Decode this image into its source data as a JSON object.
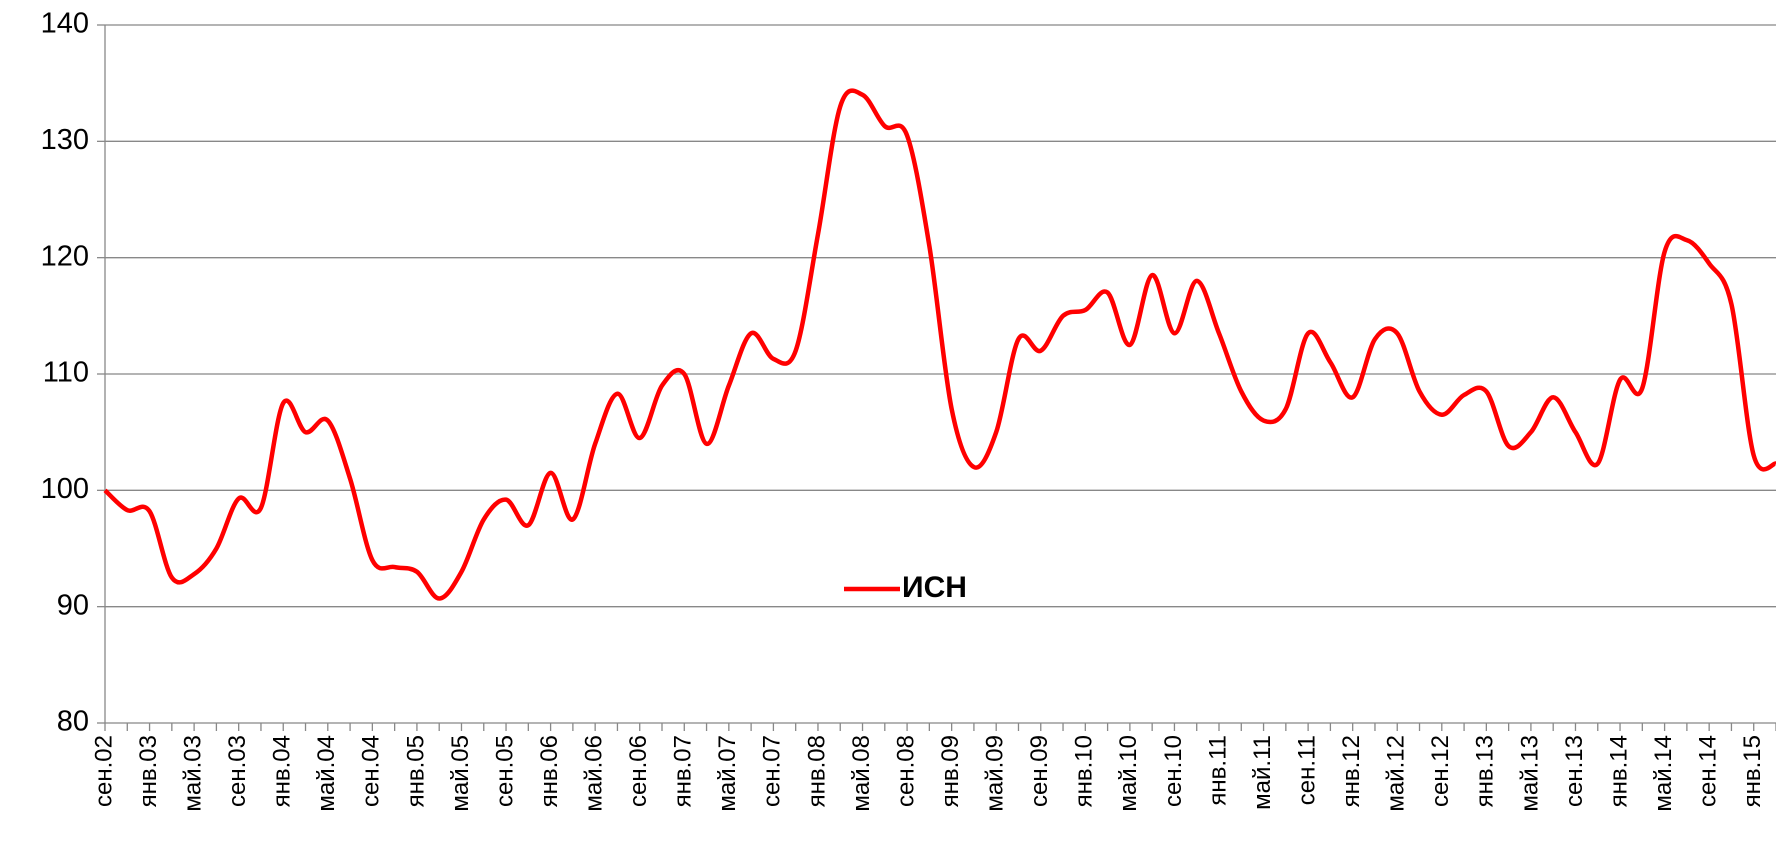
{
  "chart_data": {
    "type": "line",
    "categories": [
      "сен.02",
      null,
      "янв.03",
      null,
      "май.03",
      null,
      "сен.03",
      null,
      "янв.04",
      null,
      "май.04",
      null,
      "сен.04",
      null,
      "янв.05",
      null,
      "май.05",
      null,
      "сен.05",
      null,
      "янв.06",
      null,
      "май.06",
      null,
      "сен.06",
      null,
      "янв.07",
      null,
      "май.07",
      null,
      "сен.07",
      null,
      "янв.08",
      null,
      "май.08",
      null,
      "сен.08",
      null,
      "янв.09",
      null,
      "май.09",
      null,
      "сен.09",
      null,
      "янв.10",
      null,
      "май.10",
      null,
      "сен.10",
      null,
      "янв.11",
      null,
      "май.11",
      null,
      "сен.11",
      null,
      "янв.12",
      null,
      "май.12",
      null,
      "сен.12",
      null,
      "янв.13",
      null,
      "май.13",
      null,
      "сен.13",
      null,
      "янв.14",
      null,
      "май.14",
      null,
      "сен.14",
      null,
      "янв.15",
      null
    ],
    "series": [
      {
        "name": "ИСН",
        "color": "#ff0000",
        "values": [
          100,
          98.3,
          98.2,
          92.5,
          92.8,
          95,
          99.3,
          98.5,
          107.5,
          105,
          106,
          101,
          94,
          93.4,
          93,
          90.7,
          93,
          97.5,
          99.2,
          97,
          101.5,
          97.5,
          104,
          108.3,
          104.5,
          109,
          110,
          104,
          109,
          113.5,
          111.3,
          112,
          122,
          133,
          134,
          131.3,
          130.5,
          121,
          107,
          102,
          105,
          113,
          112,
          115,
          115.5,
          117,
          112.5,
          118.5,
          113.5,
          118,
          113.5,
          108.5,
          106,
          107,
          113.5,
          111,
          108,
          113,
          113.5,
          108.5,
          106.5,
          108.2,
          108.5,
          103.8,
          105,
          108,
          105,
          102.3,
          109.5,
          108.8,
          120.5,
          121.5,
          119.5,
          116,
          103,
          102.3
        ]
      }
    ],
    "ylim": [
      80,
      140
    ],
    "yticks": [
      80,
      90,
      100,
      110,
      120,
      130,
      140
    ],
    "grid": true
  }
}
